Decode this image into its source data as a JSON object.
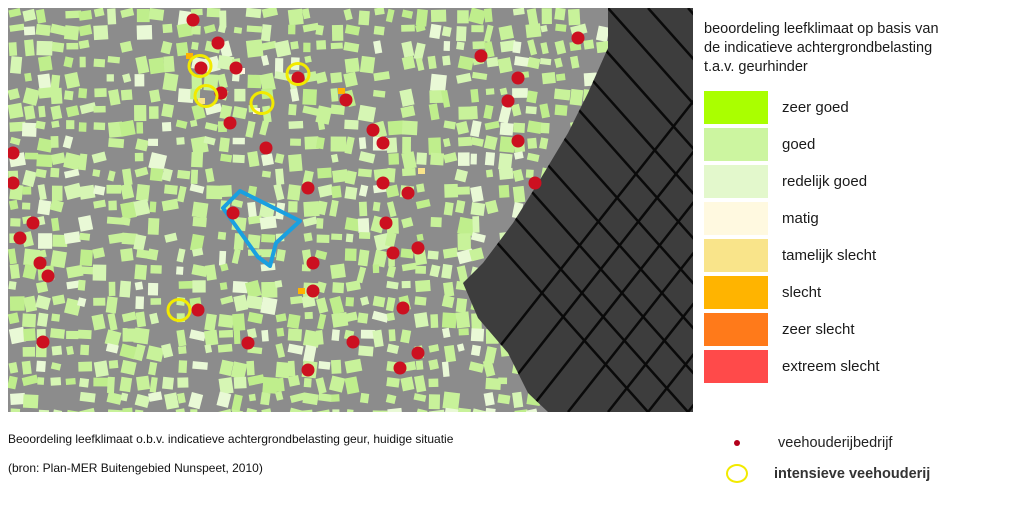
{
  "legend": {
    "title": "beoordeling leefklimaat op basis van\nde indicatieve achtergrondbelasting\nt.a.v. geurhinder",
    "classes": [
      {
        "label": "zeer goed",
        "color": "#aaff00"
      },
      {
        "label": "goed",
        "color": "#ccf5a0"
      },
      {
        "label": "redelijk goed",
        "color": "#e3f8cc"
      },
      {
        "label": "matig",
        "color": "#fff9e0"
      },
      {
        "label": "tamelijk slecht",
        "color": "#f9e48a"
      },
      {
        "label": "slecht",
        "color": "#ffb400"
      },
      {
        "label": "zeer slecht",
        "color": "#ff7a1a"
      },
      {
        "label": "extreem slecht",
        "color": "#ff4a4a"
      }
    ]
  },
  "symbols": {
    "farm_label": "veehouderijbedrijf",
    "intensive_label": "intensieve veehouderij",
    "farm_color": "#cc1020",
    "ring_color": "#f2ea00",
    "plan_outline_color": "#1aa0e0"
  },
  "caption": {
    "line1": "Beoordeling leefklimaat o.b.v. indicatieve achtergrondbelasting geur, huidige situatie",
    "line2": "(bron: Plan-MER Buitengebied Nunspeet, 2010)"
  }
}
